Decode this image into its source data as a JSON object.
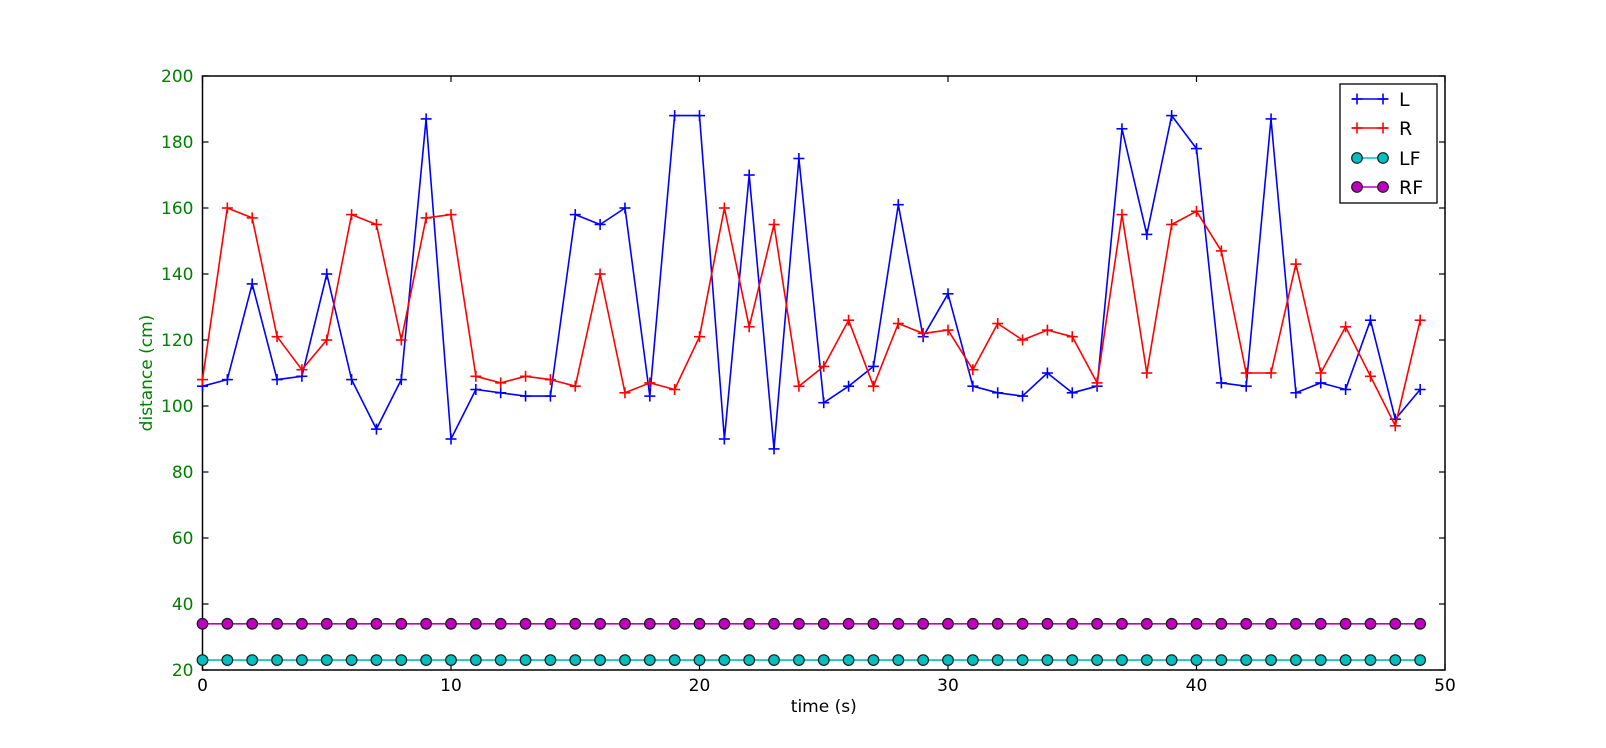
{
  "chart_data": {
    "type": "line",
    "title": "",
    "xlabel": "time (s)",
    "ylabel": "distance (cm)",
    "xlim": [
      0,
      50
    ],
    "ylim": [
      20,
      200
    ],
    "xticks": [
      0,
      10,
      20,
      30,
      40,
      50
    ],
    "yticks": [
      20,
      40,
      60,
      80,
      100,
      120,
      140,
      160,
      180,
      200
    ],
    "grid": false,
    "legend_position": "upper right",
    "x": [
      0,
      1,
      2,
      3,
      4,
      5,
      6,
      7,
      8,
      9,
      10,
      11,
      12,
      13,
      14,
      15,
      16,
      17,
      18,
      19,
      20,
      21,
      22,
      23,
      24,
      25,
      26,
      27,
      28,
      29,
      30,
      31,
      32,
      33,
      34,
      35,
      36,
      37,
      38,
      39,
      40,
      41,
      42,
      43,
      44,
      45,
      46,
      47,
      48,
      49
    ],
    "series": [
      {
        "name": "L",
        "color": "#0000ff",
        "marker": "plus",
        "values": [
          106,
          108,
          137,
          108,
          109,
          140,
          108,
          93,
          108,
          187,
          90,
          105,
          104,
          103,
          103,
          158,
          155,
          160,
          103,
          188,
          188,
          90,
          170,
          87,
          175,
          101,
          106,
          112,
          161,
          121,
          134,
          106,
          104,
          103,
          110,
          104,
          106,
          184,
          152,
          188,
          178,
          107,
          106,
          187,
          104,
          107,
          105,
          126,
          96,
          105
        ]
      },
      {
        "name": "R",
        "color": "#ff0000",
        "marker": "plus",
        "values": [
          108,
          160,
          157,
          121,
          111,
          120,
          158,
          155,
          120,
          157,
          158,
          109,
          107,
          109,
          108,
          106,
          140,
          104,
          107,
          105,
          121,
          160,
          124,
          155,
          106,
          112,
          126,
          106,
          125,
          122,
          123,
          111,
          125,
          120,
          123,
          121,
          107,
          158,
          110,
          155,
          159,
          147,
          110,
          110,
          143,
          110,
          124,
          109,
          94,
          126
        ]
      },
      {
        "name": "LF",
        "color": "#00bfbf",
        "marker": "circle",
        "values": [
          23,
          23,
          23,
          23,
          23,
          23,
          23,
          23,
          23,
          23,
          23,
          23,
          23,
          23,
          23,
          23,
          23,
          23,
          23,
          23,
          23,
          23,
          23,
          23,
          23,
          23,
          23,
          23,
          23,
          23,
          23,
          23,
          23,
          23,
          23,
          23,
          23,
          23,
          23,
          23,
          23,
          23,
          23,
          23,
          23,
          23,
          23,
          23,
          23,
          23
        ]
      },
      {
        "name": "RF",
        "color": "#bf00bf",
        "marker": "circle",
        "values": [
          34,
          34,
          34,
          34,
          34,
          34,
          34,
          34,
          34,
          34,
          34,
          34,
          34,
          34,
          34,
          34,
          34,
          34,
          34,
          34,
          34,
          34,
          34,
          34,
          34,
          34,
          34,
          34,
          34,
          34,
          34,
          34,
          34,
          34,
          34,
          34,
          34,
          34,
          34,
          34,
          34,
          34,
          34,
          34,
          34,
          34,
          34,
          34,
          34,
          34
        ]
      }
    ],
    "legend_labels": [
      "L",
      "R",
      "LF",
      "RF"
    ],
    "colors": {
      "y_tick_label": "#008000",
      "y_axis_label": "#008000",
      "x_tick_label": "#000000",
      "x_axis_label": "#000000",
      "axis_spine": "#000000",
      "legend_border": "#000000",
      "legend_background": "#ffffff",
      "marker_edge": "#1a1a1a",
      "background": "#ffffff"
    }
  }
}
